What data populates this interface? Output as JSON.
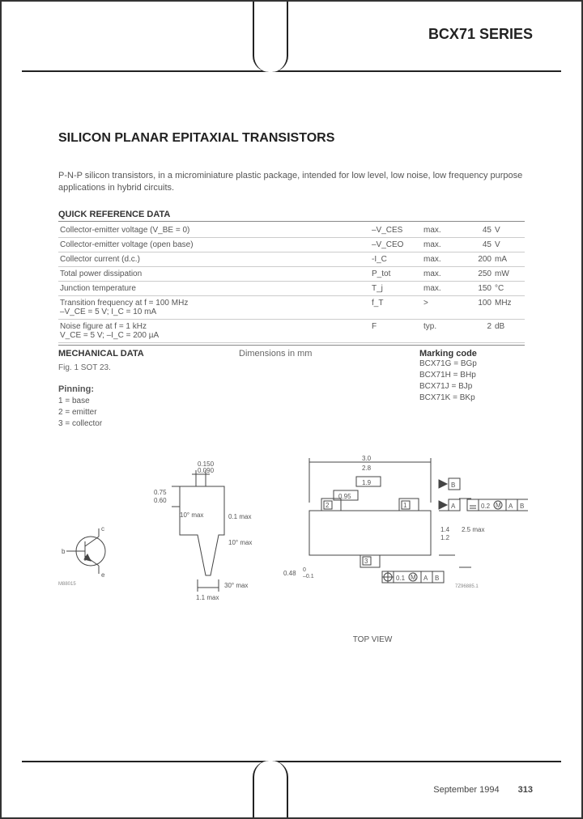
{
  "header": {
    "series": "BCX71 SERIES"
  },
  "title": "SILICON PLANAR EPITAXIAL TRANSISTORS",
  "intro": "P-N-P silicon transistors, in a microminiature plastic package, intended for low level, low noise, low frequency purpose applications in hybrid circuits.",
  "quick_ref": {
    "heading": "QUICK REFERENCE DATA",
    "rows": [
      {
        "param": "Collector-emitter voltage (V_BE = 0)",
        "symbol": "–V_CES",
        "cond": "max.",
        "value": "45",
        "unit": "V"
      },
      {
        "param": "Collector-emitter voltage (open base)",
        "symbol": "–V_CEO",
        "cond": "max.",
        "value": "45",
        "unit": "V"
      },
      {
        "param": "Collector current (d.c.)",
        "symbol": "-I_C",
        "cond": "max.",
        "value": "200",
        "unit": "mA"
      },
      {
        "param": "Total power dissipation",
        "symbol": "P_tot",
        "cond": "max.",
        "value": "250",
        "unit": "mW"
      },
      {
        "param": "Junction temperature",
        "symbol": "T_j",
        "cond": "max.",
        "value": "150",
        "unit": "°C"
      },
      {
        "param": "Transition frequency at f = 100 MHz\n  –V_CE = 5 V;  I_C = 10 mA",
        "symbol": "f_T",
        "cond": ">",
        "value": "100",
        "unit": "MHz"
      },
      {
        "param": "Noise figure at f = 1 kHz\n  V_CE = 5 V; –I_C = 200 µA",
        "symbol": "F",
        "cond": "typ.",
        "value": "2",
        "unit": "dB"
      }
    ]
  },
  "mechanical": {
    "heading": "MECHANICAL DATA",
    "dims": "Dimensions in mm",
    "marking_head": "Marking code",
    "fig": "Fig. 1  SOT 23.",
    "marking": [
      "BCX71G = BGp",
      "BCX71H = BHp",
      "BCX71J = BJp",
      "BCX71K = BKp"
    ]
  },
  "pinning": {
    "title": "Pinning:",
    "lines": [
      "1 = base",
      "2 = emitter",
      "3 = collector"
    ]
  },
  "diagram": {
    "schem_labels": {
      "b": "b",
      "c": "c",
      "e": "e",
      "code": "M88015"
    },
    "side": {
      "w1": "0.150",
      "w2": "0.090",
      "h1": "0.75",
      "h2": "0.60",
      "clr": "0.1\nmax",
      "ang1": "10°\nmax",
      "ang2": "10°\nmax",
      "lead": "1.1\nmax",
      "ang3": "30°\nmax"
    },
    "top": {
      "L1": "3.0",
      "L2": "2.8",
      "p": "1.9",
      "g": "0.95",
      "h1": "1.4",
      "h2": "1.2",
      "H": "2.5\nmax",
      "lead_w": "0.48",
      "lead_tol1": "0",
      "lead_tol2": "–0.1",
      "tolA": "0.2",
      "tolB": "0.1",
      "boxA": "A",
      "boxB": "B",
      "M": "M",
      "pin1": "1",
      "pin2": "2",
      "pin3": "3",
      "code": "7Z96885.1"
    },
    "view_label": "TOP VIEW"
  },
  "footer": {
    "date": "September 1994",
    "page": "313"
  },
  "style": {
    "text_color": "#555555",
    "line_color": "#444444",
    "fontsize_body": 10,
    "fontsize_title": 16
  }
}
